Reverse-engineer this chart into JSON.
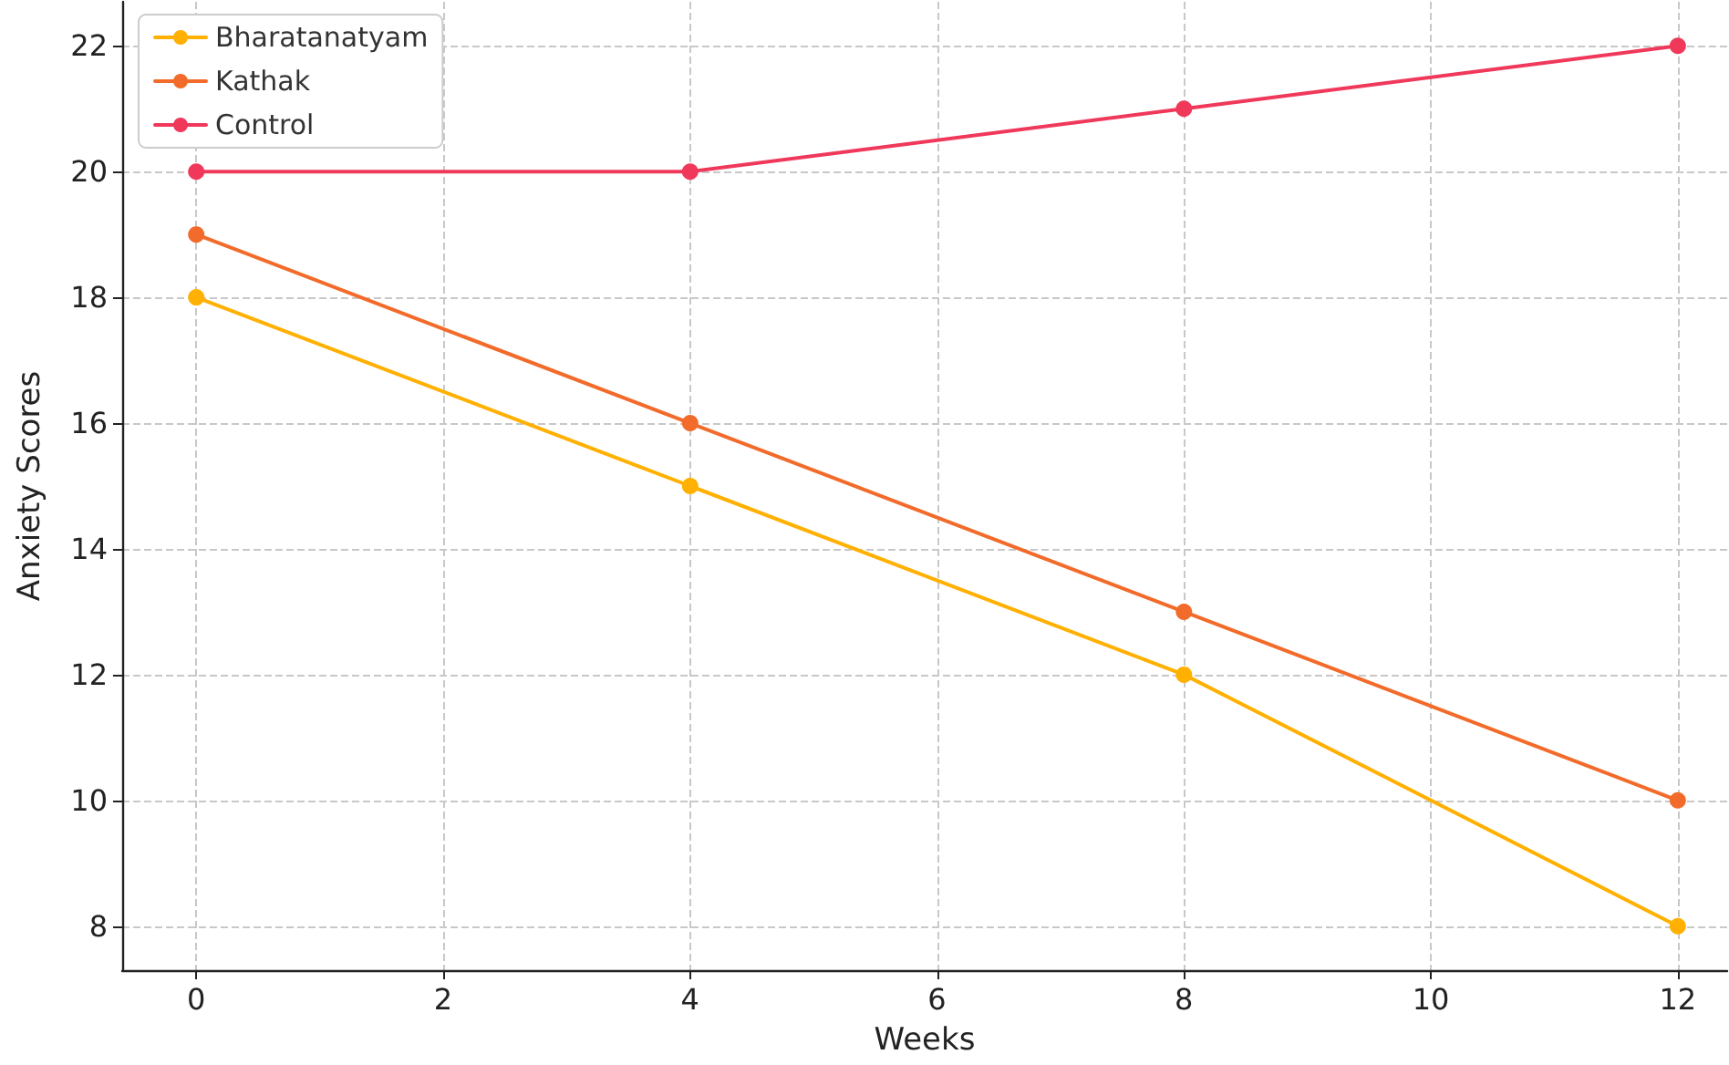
{
  "chart_data": {
    "type": "line",
    "xlabel": "Weeks",
    "ylabel": "Anxiety Scores",
    "x": [
      0,
      4,
      8,
      12
    ],
    "series": [
      {
        "name": "Bharatanatyam",
        "color": "#ffb000",
        "values": [
          18,
          15,
          12,
          8
        ]
      },
      {
        "name": "Kathak",
        "color": "#f26b2a",
        "values": [
          19,
          16,
          13,
          10
        ]
      },
      {
        "name": "Control",
        "color": "#f0385a",
        "values": [
          20,
          20,
          21,
          22
        ]
      }
    ],
    "xlim": [
      -0.6,
      12.4
    ],
    "xticks": [
      0,
      2,
      4,
      6,
      8,
      10,
      12
    ],
    "ylim": [
      7.3,
      22.7
    ],
    "yticks": [
      8,
      10,
      12,
      14,
      16,
      18,
      20,
      22
    ],
    "grid": true,
    "legend": "top left",
    "marker": "circle",
    "line_style": "solid"
  }
}
